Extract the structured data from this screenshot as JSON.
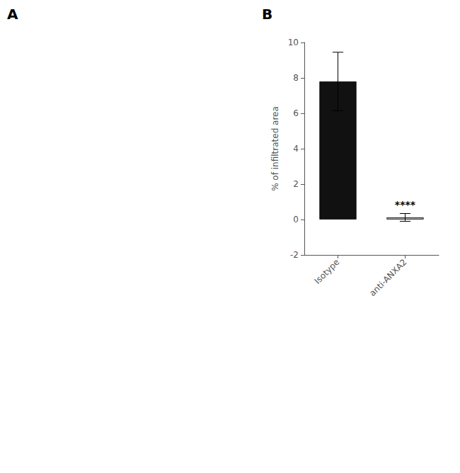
{
  "chart_data": {
    "type": "bar",
    "categories": [
      "Isotype",
      "anti-ANXA2"
    ],
    "values": [
      7.8,
      0.12
    ],
    "error_bars": [
      1.65,
      0.22
    ],
    "colors": [
      "#111111",
      "#aaaaaa"
    ],
    "ylabel": "% of infiltrated area",
    "ylim": [
      -2,
      10
    ],
    "yticks": [
      -2,
      0,
      2,
      4,
      6,
      8,
      10
    ],
    "annotations": [
      {
        "text": "A"
      },
      {
        "text": "B"
      },
      {
        "text": "****",
        "category": "anti-ANXA2"
      }
    ],
    "grid": false
  }
}
